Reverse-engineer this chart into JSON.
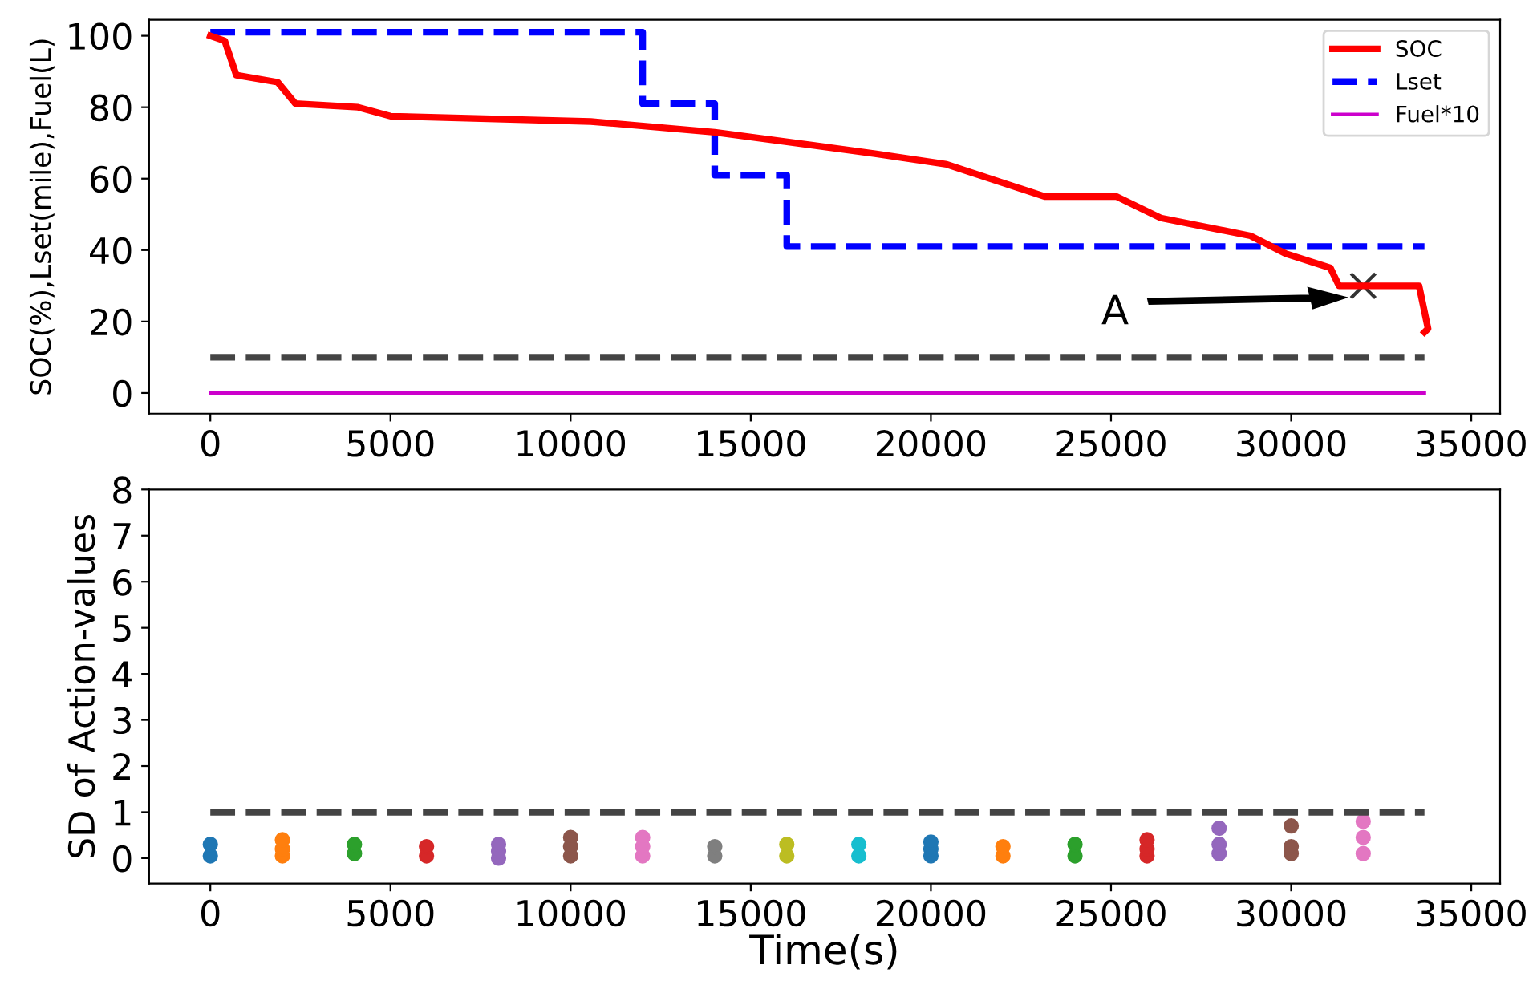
{
  "chart_data": [
    {
      "type": "line",
      "ylabel": "SOC(%),Lset(mile),Fuel(L)",
      "xlim": [
        -1700,
        35800
      ],
      "ylim": [
        -5.8,
        104.5
      ],
      "xticks": [
        0,
        5000,
        10000,
        15000,
        20000,
        25000,
        30000,
        35000
      ],
      "yticks": [
        0,
        20,
        40,
        60,
        80,
        100
      ],
      "legend": "top right",
      "grid": false,
      "annotations": [
        "A"
      ],
      "series": [
        {
          "name": "SOC",
          "type": "line",
          "color": "#ff0000",
          "line_style": "solid",
          "x": [
            0,
            400,
            720,
            1870,
            2360,
            4100,
            5000,
            10560,
            14000,
            18450,
            20440,
            23160,
            25150,
            26380,
            28870,
            29850,
            31090,
            31330,
            33550,
            33800,
            33700
          ],
          "values": [
            100,
            98.6,
            89,
            87,
            81,
            80,
            77.5,
            76,
            73,
            67,
            64,
            55,
            55,
            49,
            44,
            39,
            35,
            30,
            30,
            18,
            17
          ]
        },
        {
          "name": "Lset",
          "type": "step",
          "color": "#0000ff",
          "line_style": "dashed",
          "x": [
            0,
            12000,
            14000,
            16000,
            33700
          ],
          "values": [
            101,
            81,
            61,
            41,
            41
          ]
        },
        {
          "name": "Fuel*10",
          "type": "line",
          "color": "#cc00cc",
          "line_style": "solid",
          "x": [
            0,
            33700
          ],
          "values": [
            0,
            0
          ]
        },
        {
          "type": "line",
          "color": "#444444",
          "line_style": "dashed",
          "x": [
            0,
            33700
          ],
          "values": [
            10,
            10
          ]
        },
        {
          "type": "scatter",
          "color": "#333333",
          "marker": "cross",
          "x": [
            32000
          ],
          "values": [
            30
          ]
        }
      ]
    },
    {
      "type": "scatter",
      "xlabel": "Time(s)",
      "ylabel": "SD of Action-values",
      "xlim": [
        -1700,
        35800
      ],
      "ylim": [
        -0.55,
        8
      ],
      "xticks": [
        0,
        5000,
        10000,
        15000,
        20000,
        25000,
        30000,
        35000
      ],
      "yticks": [
        0,
        1,
        2,
        3,
        4,
        5,
        6,
        7,
        8
      ],
      "grid": false,
      "marker": "circle",
      "series": [
        {
          "type": "line",
          "color": "#444444",
          "line_style": "dashed",
          "marker": "none",
          "x": [
            0,
            33700
          ],
          "values": [
            1,
            1
          ]
        },
        {
          "color": "#1f77b4",
          "x": [
            0,
            0
          ],
          "values": [
            0.05,
            0.3
          ]
        },
        {
          "color": "#ff7f0e",
          "x": [
            2000,
            2000,
            2000
          ],
          "values": [
            0.05,
            0.2,
            0.4
          ]
        },
        {
          "color": "#2ca02c",
          "x": [
            4000,
            4000
          ],
          "values": [
            0.1,
            0.3
          ]
        },
        {
          "color": "#d62728",
          "x": [
            6000,
            6000
          ],
          "values": [
            0.05,
            0.25
          ]
        },
        {
          "color": "#9467bd",
          "x": [
            8000,
            8000,
            8000
          ],
          "values": [
            0.0,
            0.15,
            0.3
          ]
        },
        {
          "color": "#8c564b",
          "x": [
            10000,
            10000,
            10000
          ],
          "values": [
            0.05,
            0.25,
            0.45
          ]
        },
        {
          "color": "#e377c2",
          "x": [
            12000,
            12000,
            12000
          ],
          "values": [
            0.05,
            0.25,
            0.45
          ]
        },
        {
          "color": "#7f7f7f",
          "x": [
            14000,
            14000
          ],
          "values": [
            0.05,
            0.25
          ]
        },
        {
          "color": "#bcbd22",
          "x": [
            16000,
            16000
          ],
          "values": [
            0.05,
            0.3
          ]
        },
        {
          "color": "#17becf",
          "x": [
            18000,
            18000
          ],
          "values": [
            0.05,
            0.3
          ]
        },
        {
          "color": "#1f77b4",
          "x": [
            20000,
            20000,
            20000
          ],
          "values": [
            0.05,
            0.2,
            0.35
          ]
        },
        {
          "color": "#ff7f0e",
          "x": [
            22000,
            22000
          ],
          "values": [
            0.05,
            0.25
          ]
        },
        {
          "color": "#2ca02c",
          "x": [
            24000,
            24000
          ],
          "values": [
            0.05,
            0.3
          ]
        },
        {
          "color": "#d62728",
          "x": [
            26000,
            26000,
            26000
          ],
          "values": [
            0.05,
            0.2,
            0.4
          ]
        },
        {
          "color": "#9467bd",
          "x": [
            28000,
            28000,
            28000
          ],
          "values": [
            0.1,
            0.3,
            0.65
          ]
        },
        {
          "color": "#8c564b",
          "x": [
            30000,
            30000,
            30000
          ],
          "values": [
            0.1,
            0.25,
            0.7
          ]
        },
        {
          "color": "#e377c2",
          "x": [
            32000,
            32000,
            32000
          ],
          "values": [
            0.1,
            0.45,
            0.8
          ]
        }
      ]
    }
  ]
}
